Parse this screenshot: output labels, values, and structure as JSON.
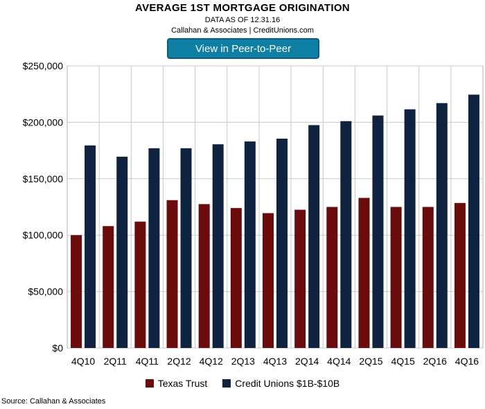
{
  "header": {
    "title": "AVERAGE 1ST MORTGAGE ORIGINATION",
    "subtitle": "DATA AS OF 12.31.16",
    "credit": "Callahan & Associates | CreditUnions.com",
    "peer_button_label": "View in Peer-to-Peer"
  },
  "footer": {
    "source": "Source: Callahan & Associates"
  },
  "chart_data": {
    "type": "bar",
    "title": "AVERAGE 1ST MORTGAGE ORIGINATION",
    "categories": [
      "4Q10",
      "2Q11",
      "4Q11",
      "2Q12",
      "4Q12",
      "2Q13",
      "4Q13",
      "2Q14",
      "4Q14",
      "2Q15",
      "4Q15",
      "2Q16",
      "4Q16"
    ],
    "series": [
      {
        "name": "Texas Trust",
        "color": "#6b0c0c",
        "values": [
          100000,
          108000,
          112000,
          131000,
          127500,
          124000,
          119500,
          122500,
          125000,
          133000,
          125000,
          125000,
          128500
        ]
      },
      {
        "name": "Credit Unions $1B-$10B",
        "color": "#0f2340",
        "values": [
          179500,
          169500,
          177000,
          177000,
          180500,
          183000,
          185500,
          197500,
          201000,
          206000,
          211500,
          217000,
          224500
        ]
      }
    ],
    "ylim": [
      0,
      250000
    ],
    "yticks": [
      "$0",
      "$50,000",
      "$100,000",
      "$150,000",
      "$200,000",
      "$250,000"
    ],
    "grid": true,
    "legend_position": "bottom"
  }
}
